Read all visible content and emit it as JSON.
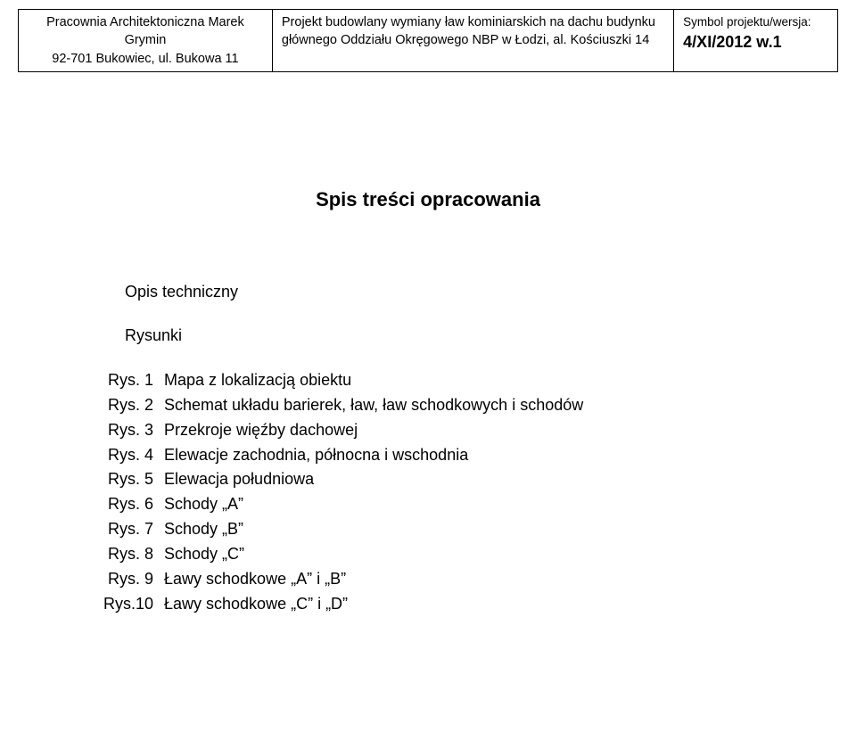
{
  "header": {
    "col1": {
      "line1": "Pracownia Architektoniczna Marek Grymin",
      "line2": "92-701 Bukowiec, ul. Bukowa 11"
    },
    "col2": {
      "line1": "Projekt budowlany wymiany ław kominiarskich na dachu budynku",
      "line2": "głównego Oddziału Okręgowego NBP w Łodzi, al. Kościuszki 14"
    },
    "col3": {
      "label": "Symbol projektu/wersja:",
      "value": "4/XI/2012 w.1"
    }
  },
  "title": "Spis treści opracowania",
  "sections": {
    "description": "Opis techniczny",
    "drawings_label": "Rysunki"
  },
  "drawings": [
    {
      "num": "Rys. 1",
      "title": "Mapa z lokalizacją obiektu"
    },
    {
      "num": "Rys. 2",
      "title": "Schemat układu barierek, ław, ław schodkowych i schodów"
    },
    {
      "num": "Rys. 3",
      "title": "Przekroje więźby dachowej"
    },
    {
      "num": "Rys. 4",
      "title": "Elewacje zachodnia, północna i wschodnia"
    },
    {
      "num": "Rys. 5",
      "title": "Elewacja południowa"
    },
    {
      "num": "Rys. 6",
      "title": "Schody „A”"
    },
    {
      "num": "Rys. 7",
      "title": "Schody „B”"
    },
    {
      "num": "Rys. 8",
      "title": "Schody „C”"
    },
    {
      "num": "Rys. 9",
      "title": "Ławy schodkowe „A” i „B”"
    },
    {
      "num": "Rys.10",
      "title": "Ławy schodkowe „C” i „D”"
    }
  ]
}
